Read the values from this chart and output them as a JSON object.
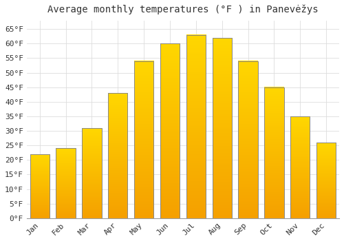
{
  "title": "Average monthly temperatures (°F ) in Panevėžys",
  "months": [
    "Jan",
    "Feb",
    "Mar",
    "Apr",
    "May",
    "Jun",
    "Jul",
    "Aug",
    "Sep",
    "Oct",
    "Nov",
    "Dec"
  ],
  "values": [
    22,
    24,
    31,
    43,
    54,
    60,
    63,
    62,
    54,
    45,
    35,
    26
  ],
  "bar_color_top": "#FFD700",
  "bar_color_bottom": "#F5A000",
  "bar_edge_color": "#888888",
  "background_color": "#FFFFFF",
  "grid_color": "#DDDDDD",
  "text_color": "#333333",
  "ylim": [
    0,
    68
  ],
  "yticks": [
    0,
    5,
    10,
    15,
    20,
    25,
    30,
    35,
    40,
    45,
    50,
    55,
    60,
    65
  ],
  "title_fontsize": 10,
  "tick_fontsize": 8,
  "font_family": "monospace",
  "bar_width": 0.75
}
